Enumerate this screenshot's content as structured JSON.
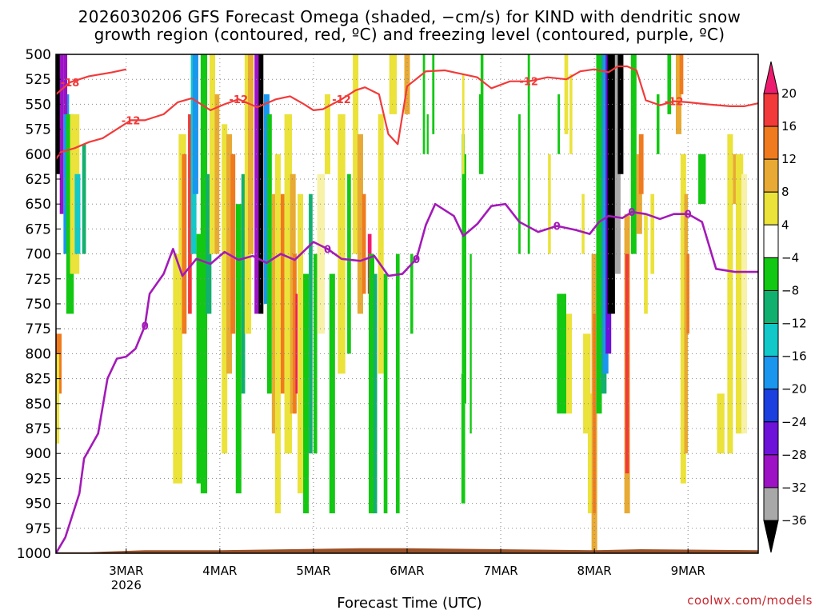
{
  "title_line1": "2026030206 GFS Forecast Omega (shaded, −cm/s) for KIND with dendritic snow",
  "title_line2": "growth region (contoured, red, ºC) and freezing level (contoured, purple, ºC)",
  "xlabel": "Forecast Time (UTC)",
  "credit": "coolwx.com/models",
  "chart_data": {
    "type": "heatmap",
    "title": "2026030206 GFS Forecast Omega (shaded, −cm/s) for KIND with dendritic snow growth region (contoured, red, ºC) and freezing level (contoured, purple, ºC)",
    "xlabel": "Forecast Time (UTC)",
    "ylabel": "",
    "x_range_days": [
      2.25,
      9.75
    ],
    "y_range_hpa": [
      500,
      1000
    ],
    "y_inverted": true,
    "x_ticks": [
      {
        "day": 3,
        "label": "3MAR",
        "sublabel": "2026"
      },
      {
        "day": 4,
        "label": "4MAR"
      },
      {
        "day": 5,
        "label": "5MAR"
      },
      {
        "day": 6,
        "label": "6MAR"
      },
      {
        "day": 7,
        "label": "7MAR"
      },
      {
        "day": 8,
        "label": "8MAR"
      },
      {
        "day": 9,
        "label": "9MAR"
      }
    ],
    "y_ticks": [
      "500",
      "525",
      "550",
      "575",
      "600",
      "625",
      "650",
      "675",
      "700",
      "725",
      "750",
      "775",
      "800",
      "825",
      "850",
      "875",
      "900",
      "925",
      "950",
      "975",
      "1000"
    ],
    "grid": true,
    "colorbar": {
      "labels": [
        "20",
        "16",
        "12",
        "8",
        "4",
        "−4",
        "−8",
        "−12",
        "−16",
        "−20",
        "−24",
        "−28",
        "−32",
        "−36"
      ],
      "colors": [
        "#ee1c6e",
        "#f23a3a",
        "#f07a1e",
        "#e8aa34",
        "#ebe23a",
        "#ffffff",
        "#12c812",
        "#12b06e",
        "#12c8c8",
        "#1a96ee",
        "#1c3fe0",
        "#6d12d8",
        "#9c12c4",
        "#a8a8a8",
        "#000000"
      ]
    },
    "series": [
      {
        "name": "-18",
        "color": "#f23a3a",
        "x": [
          2.25,
          2.4,
          2.6,
          2.85,
          3.0
        ],
        "y": [
          540,
          528,
          522,
          518,
          515
        ]
      },
      {
        "name": "-12",
        "color": "#f23a3a",
        "x": [
          2.25,
          2.3,
          2.45,
          2.6,
          2.75,
          2.9,
          3.05,
          3.2,
          3.4,
          3.55,
          3.7,
          3.9,
          4.05,
          4.2,
          4.4,
          4.6,
          4.75,
          4.9,
          5.0,
          5.1,
          5.3,
          5.45,
          5.55,
          5.7,
          5.8,
          5.9,
          6.0,
          6.2,
          6.4,
          6.6,
          6.75,
          6.9,
          7.1,
          7.3,
          7.5,
          7.7,
          7.85,
          8.0,
          8.15,
          8.25,
          8.35,
          8.45,
          8.55,
          8.7,
          8.85,
          9.0,
          9.2,
          9.45,
          9.6,
          9.75
        ],
        "y": [
          605,
          598,
          594,
          588,
          584,
          575,
          566,
          566,
          560,
          548,
          544,
          556,
          550,
          545,
          553,
          545,
          542,
          550,
          556,
          555,
          545,
          536,
          533,
          540,
          580,
          590,
          532,
          517,
          516,
          520,
          523,
          534,
          527,
          527,
          523,
          525,
          517,
          515,
          518,
          512,
          512,
          516,
          546,
          551,
          547,
          548,
          550,
          552,
          552,
          549
        ]
      },
      {
        "name": "0",
        "color": "#a31ab8",
        "x": [
          2.25,
          2.35,
          2.5,
          2.55,
          2.7,
          2.8,
          2.9,
          3.0,
          3.1,
          3.2,
          3.25,
          3.4,
          3.5,
          3.6,
          3.75,
          3.9,
          4.05,
          4.2,
          4.35,
          4.5,
          4.65,
          4.8,
          5.0,
          5.15,
          5.3,
          5.5,
          5.65,
          5.8,
          5.95,
          6.1,
          6.2,
          6.3,
          6.5,
          6.6,
          6.75,
          6.9,
          7.05,
          7.2,
          7.4,
          7.6,
          7.8,
          7.95,
          8.05,
          8.15,
          8.3,
          8.4,
          8.55,
          8.7,
          8.85,
          9.0,
          9.15,
          9.3,
          9.5,
          9.65,
          9.75
        ],
        "y": [
          1000,
          984,
          940,
          905,
          880,
          825,
          805,
          803,
          795,
          772,
          740,
          720,
          695,
          722,
          705,
          710,
          698,
          706,
          702,
          709,
          700,
          706,
          688,
          695,
          705,
          707,
          702,
          722,
          720,
          705,
          671,
          650,
          662,
          682,
          670,
          652,
          650,
          668,
          678,
          672,
          676,
          680,
          668,
          662,
          664,
          658,
          660,
          665,
          660,
          660,
          668,
          715,
          718,
          718,
          718
        ]
      }
    ],
    "terrain_color": "#9a5026"
  }
}
